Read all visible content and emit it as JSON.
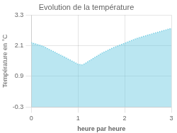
{
  "chart_data": {
    "type": "area",
    "title": "Evolution de la température",
    "xlabel": "heure par heure",
    "ylabel": "Température en °C",
    "x": [
      0,
      0.25,
      0.5,
      0.75,
      1.0,
      1.1,
      1.25,
      1.5,
      1.75,
      2.0,
      2.25,
      2.5,
      2.75,
      3.0
    ],
    "values": [
      2.22,
      2.08,
      1.85,
      1.62,
      1.38,
      1.35,
      1.52,
      1.8,
      2.02,
      2.2,
      2.38,
      2.52,
      2.65,
      2.78
    ],
    "color": "#66c8e0",
    "line_style": "dotted",
    "xlim": [
      0,
      3
    ],
    "ylim": [
      -0.3,
      3.3
    ],
    "xticks": [
      0,
      1,
      2,
      3
    ],
    "yticks": [
      -0.3,
      0.9,
      2.1,
      3.3
    ],
    "grid": true
  }
}
